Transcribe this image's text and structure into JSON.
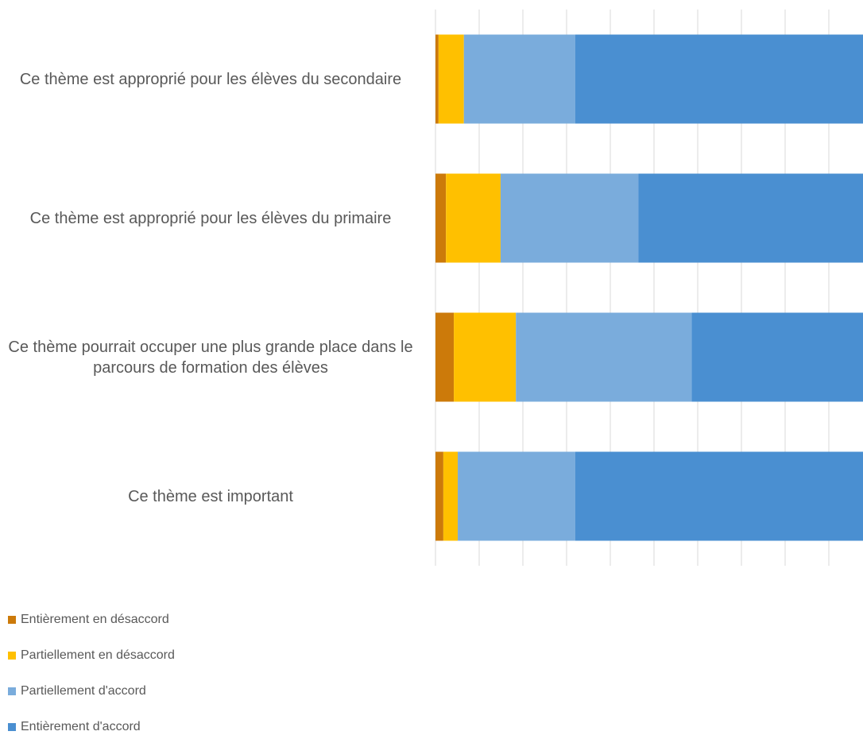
{
  "chart_data": {
    "type": "stacked-bar-horizontal",
    "categories": [
      "Ce thème est approprié pour les élèves du secondaire",
      "Ce thème est approprié pour les élèves du primaire",
      "Ce thème pourrait occuper une plus grande place dans le parcours de formation des élèves",
      "Ce thème est important"
    ],
    "series": [
      {
        "name": "Entièrement en désaccord",
        "color": "#cc7a0a",
        "values": [
          0.7,
          2.4,
          4.2,
          1.8
        ]
      },
      {
        "name": "Partiellement en désaccord",
        "color": "#ffc000",
        "values": [
          5.8,
          12.5,
          14.2,
          3.3
        ]
      },
      {
        "name": "Partiellement d'accord",
        "color": "#7aacdc",
        "values": [
          25.5,
          31.5,
          40.2,
          26.9
        ]
      },
      {
        "name": "Entièrement d'accord",
        "color": "#4a8fd1",
        "values": [
          68,
          53.6,
          41.4,
          68
        ]
      }
    ],
    "xlim": [
      0,
      100
    ],
    "xticks": [
      0,
      10,
      20,
      30,
      40,
      50,
      60,
      70,
      80,
      90,
      100
    ],
    "grid": true
  }
}
